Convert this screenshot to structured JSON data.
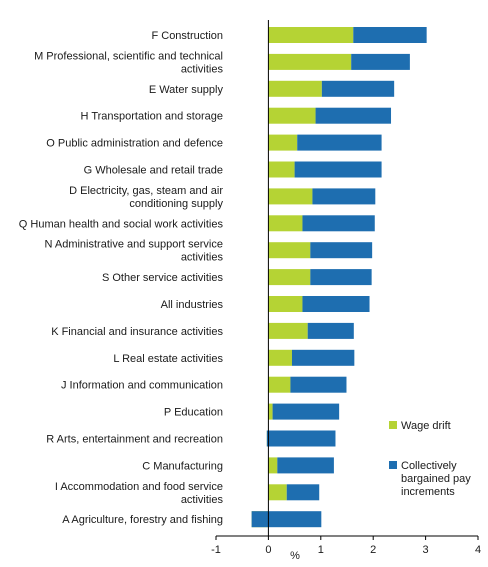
{
  "chart_data": {
    "type": "bar",
    "orientation": "horizontal",
    "stacked": true,
    "title": "",
    "xlabel": "%",
    "ylabel": "",
    "xlim": [
      -1,
      4
    ],
    "xticks": [
      -1,
      0,
      1,
      2,
      3,
      4
    ],
    "grid": false,
    "legend_position": "right",
    "categories": [
      [
        "F Construction"
      ],
      [
        "M Professional, scientific and technical",
        "activities"
      ],
      [
        "E Water supply"
      ],
      [
        "H Transportation and storage"
      ],
      [
        "O Public administration and defence"
      ],
      [
        "G Wholesale and retail trade"
      ],
      [
        "D Electricity, gas, steam and air",
        "conditioning supply"
      ],
      [
        "Q Human health and social work activities"
      ],
      [
        "N Administrative and support service",
        "activities"
      ],
      [
        "S Other service activities"
      ],
      [
        "All industries"
      ],
      [
        "K Financial and insurance activities"
      ],
      [
        "L Real estate activities"
      ],
      [
        "J Information and communication"
      ],
      [
        "P Education"
      ],
      [
        "R Arts, entertainment and recreation"
      ],
      [
        "C Manufacturing"
      ],
      [
        "I Accommodation and food service",
        "activities"
      ],
      [
        "A Agriculture, forestry and fishing"
      ]
    ],
    "series": [
      {
        "name": [
          "Wage drift"
        ],
        "color": "#b5d334",
        "values": [
          1.62,
          1.58,
          1.02,
          0.9,
          0.55,
          0.5,
          0.84,
          0.65,
          0.8,
          0.8,
          0.65,
          0.75,
          0.45,
          0.42,
          0.08,
          -0.03,
          0.17,
          0.35,
          -0.32
        ]
      },
      {
        "name": [
          "Collectively",
          "bargained pay",
          "increments"
        ],
        "color": "#1e6eb0",
        "values": [
          1.4,
          1.12,
          1.38,
          1.44,
          1.61,
          1.66,
          1.2,
          1.38,
          1.18,
          1.17,
          1.28,
          0.88,
          1.19,
          1.07,
          1.27,
          1.31,
          1.08,
          0.62,
          1.33
        ]
      }
    ]
  }
}
